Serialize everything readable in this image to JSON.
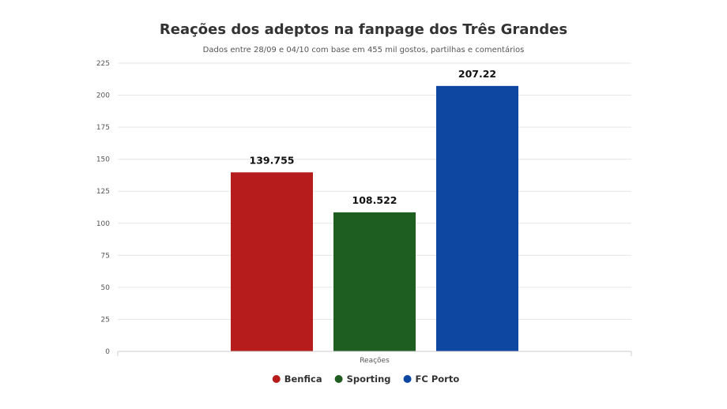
{
  "chart_data": {
    "type": "bar",
    "title": "Reações dos adeptos na fanpage dos Três Grandes",
    "subtitle": "Dados entre 28/09 e 04/10 com base em 455 mil gostos, partilhas e comentários",
    "categories": [
      "Reações"
    ],
    "series": [
      {
        "name": "Benfica",
        "values": [
          139.755
        ],
        "label": "139.755",
        "color": "#b71c1c"
      },
      {
        "name": "Sporting",
        "values": [
          108.522
        ],
        "label": "108.522",
        "color": "#1e5e20"
      },
      {
        "name": "FC Porto",
        "values": [
          207.22
        ],
        "label": "207.22",
        "color": "#0d47a1"
      }
    ],
    "xlabel": "",
    "ylabel": "",
    "ylim": [
      0,
      225
    ],
    "yticks": [
      "0",
      "25",
      "50",
      "75",
      "100",
      "125",
      "150",
      "175",
      "200",
      "225"
    ],
    "grid": true,
    "legend_position": "bottom-center"
  }
}
